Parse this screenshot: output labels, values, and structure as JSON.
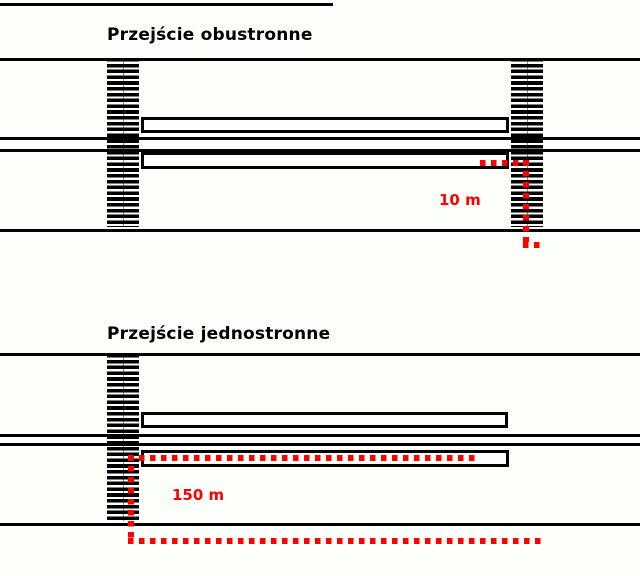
{
  "canvas": {
    "background_color": "#fdfffb",
    "line_color": "#000000",
    "path_color": "#ff0000"
  },
  "diagrams": [
    {
      "title": "Przejście obustronne",
      "distance_label": "10 m",
      "crossings": 2
    },
    {
      "title": "Przejście jednostronne",
      "distance_label": "150 m",
      "crossings": 1
    }
  ]
}
